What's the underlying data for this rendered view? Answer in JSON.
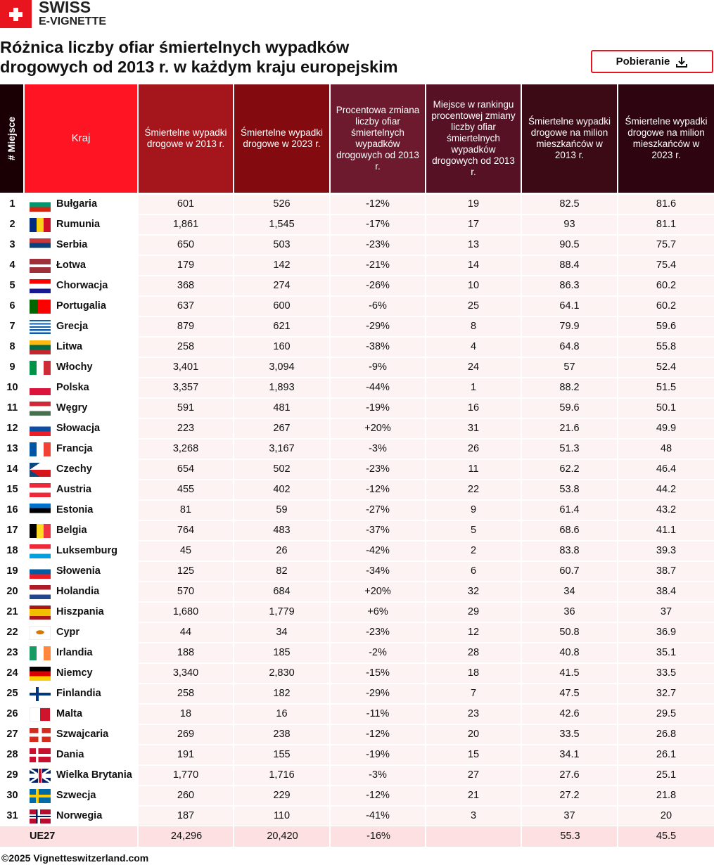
{
  "logo": {
    "line1": "SWISS",
    "line2": "E-VIGNETTE"
  },
  "header": {
    "title": [
      "Różnica liczby ofiar śmiertelnych wypadków",
      "drogowych od 2013 r. w każdym kraju europejskim"
    ],
    "download": "Pobieranie"
  },
  "table": {
    "columns": [
      "# Miejsce",
      "Kraj",
      "Śmiertelne wypadki drogowe w 2013 r.",
      "Śmiertelne wypadki drogowe w 2023 r.",
      "Procentowa zmiana liczby ofiar śmiertelnych wypadków drogowych od 2013 r.",
      "Miejsce w rankingu procentowej zmiany liczby ofiar śmiertelnych wypadków drogowych od 2013 r.",
      "Śmiertelne wypadki drogowe na milion mieszkańców w 2013 r.",
      "Śmiertelne wypadki drogowe na milion mieszkańców w 2023 r."
    ],
    "rows": [
      [
        "1",
        "Bułgaria",
        "601",
        "526",
        "-12%",
        "19",
        "82.5",
        "81.6"
      ],
      [
        "2",
        "Rumunia",
        "1,861",
        "1,545",
        "-17%",
        "17",
        "93",
        "81.1"
      ],
      [
        "3",
        "Serbia",
        "650",
        "503",
        "-23%",
        "13",
        "90.5",
        "75.7"
      ],
      [
        "4",
        "Łotwa",
        "179",
        "142",
        "-21%",
        "14",
        "88.4",
        "75.4"
      ],
      [
        "5",
        "Chorwacja",
        "368",
        "274",
        "-26%",
        "10",
        "86.3",
        "60.2"
      ],
      [
        "6",
        "Portugalia",
        "637",
        "600",
        "-6%",
        "25",
        "64.1",
        "60.2"
      ],
      [
        "7",
        "Grecja",
        "879",
        "621",
        "-29%",
        "8",
        "79.9",
        "59.6"
      ],
      [
        "8",
        "Litwa",
        "258",
        "160",
        "-38%",
        "4",
        "64.8",
        "55.8"
      ],
      [
        "9",
        "Włochy",
        "3,401",
        "3,094",
        "-9%",
        "24",
        "57",
        "52.4"
      ],
      [
        "10",
        "Polska",
        "3,357",
        "1,893",
        "-44%",
        "1",
        "88.2",
        "51.5"
      ],
      [
        "11",
        "Węgry",
        "591",
        "481",
        "-19%",
        "16",
        "59.6",
        "50.1"
      ],
      [
        "12",
        "Słowacja",
        "223",
        "267",
        "+20%",
        "31",
        "21.6",
        "49.9"
      ],
      [
        "13",
        "Francja",
        "3,268",
        "3,167",
        "-3%",
        "26",
        "51.3",
        "48"
      ],
      [
        "14",
        "Czechy",
        "654",
        "502",
        "-23%",
        "11",
        "62.2",
        "46.4"
      ],
      [
        "15",
        "Austria",
        "455",
        "402",
        "-12%",
        "22",
        "53.8",
        "44.2"
      ],
      [
        "16",
        "Estonia",
        "81",
        "59",
        "-27%",
        "9",
        "61.4",
        "43.2"
      ],
      [
        "17",
        "Belgia",
        "764",
        "483",
        "-37%",
        "5",
        "68.6",
        "41.1"
      ],
      [
        "18",
        "Luksemburg",
        "45",
        "26",
        "-42%",
        "2",
        "83.8",
        "39.3"
      ],
      [
        "19",
        "Słowenia",
        "125",
        "82",
        "-34%",
        "6",
        "60.7",
        "38.7"
      ],
      [
        "20",
        "Holandia",
        "570",
        "684",
        "+20%",
        "32",
        "34",
        "38.4"
      ],
      [
        "21",
        "Hiszpania",
        "1,680",
        "1,779",
        "+6%",
        "29",
        "36",
        "37"
      ],
      [
        "22",
        "Cypr",
        "44",
        "34",
        "-23%",
        "12",
        "50.8",
        "36.9"
      ],
      [
        "23",
        "Irlandia",
        "188",
        "185",
        "-2%",
        "28",
        "40.8",
        "35.1"
      ],
      [
        "24",
        "Niemcy",
        "3,340",
        "2,830",
        "-15%",
        "18",
        "41.5",
        "33.5"
      ],
      [
        "25",
        "Finlandia",
        "258",
        "182",
        "-29%",
        "7",
        "47.5",
        "32.7"
      ],
      [
        "26",
        "Malta",
        "18",
        "16",
        "-11%",
        "23",
        "42.6",
        "29.5"
      ],
      [
        "27",
        "Szwajcaria",
        "269",
        "238",
        "-12%",
        "20",
        "33.5",
        "26.8"
      ],
      [
        "28",
        "Dania",
        "191",
        "155",
        "-19%",
        "15",
        "34.1",
        "26.1"
      ],
      [
        "29",
        "Wielka Brytania",
        "1,770",
        "1,716",
        "-3%",
        "27",
        "27.6",
        "25.1"
      ],
      [
        "30",
        "Szwecja",
        "260",
        "229",
        "-12%",
        "21",
        "27.2",
        "21.8"
      ],
      [
        "31",
        "Norwegia",
        "187",
        "110",
        "-41%",
        "3",
        "37",
        "20"
      ]
    ],
    "total": {
      "label": "UE27",
      "deaths_2013": "24,296",
      "deaths_2023": "20,420",
      "change": "-16%",
      "per_million_2013": "55.3",
      "per_million_2023": "45.5"
    }
  },
  "footer": {
    "copyright": "©2025 Vignetteswitzerland.com"
  }
}
